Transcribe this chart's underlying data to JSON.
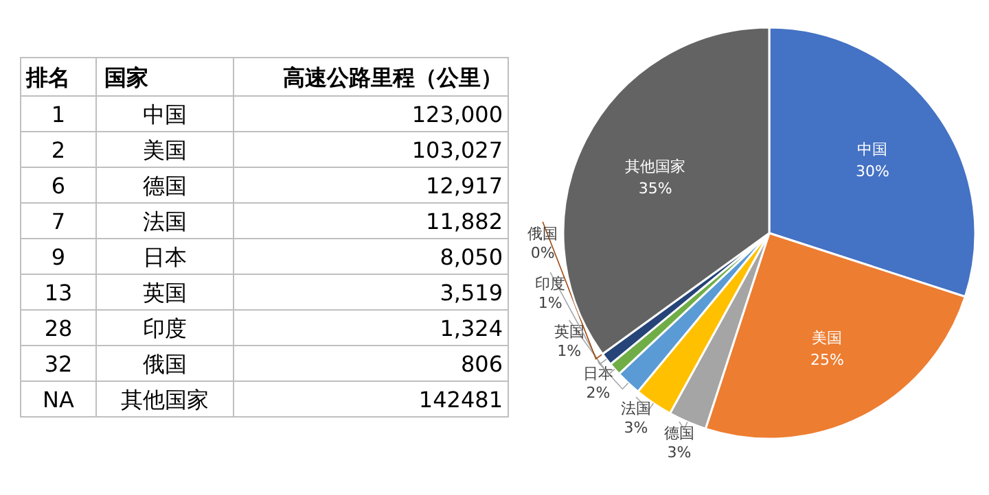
{
  "chart_data": [
    {
      "type": "other",
      "annotations": [
        "排名",
        "国家",
        "高速公路里程（公里）",
        "1",
        "2",
        "6",
        "7",
        "9",
        "13",
        "28",
        "32",
        "NA"
      ],
      "categories": [
        "中国",
        "美国",
        "德国",
        "法国",
        "日本",
        "英国",
        "印度",
        "俄国",
        "其他国家"
      ],
      "value_labels": [
        "123,000",
        "103,027",
        "12,917",
        "11,882",
        "8,050",
        "3,519",
        "1,324",
        "806",
        "142481"
      ]
    },
    {
      "type": "pie",
      "categories": [
        "中国",
        "美国",
        "德国",
        "法国",
        "日本",
        "英国",
        "印度",
        "俄国",
        "其他国家"
      ],
      "values": [
        30,
        25,
        3,
        3,
        2,
        1,
        1,
        0,
        35
      ],
      "value_labels": [
        "30%",
        "25%",
        "3%",
        "3%",
        "2%",
        "1%",
        "1%",
        "0%",
        "35%"
      ],
      "colors": [
        "#4472c4",
        "#ed7d31",
        "#a5a5a5",
        "#ffc000",
        "#5b9bd5",
        "#70ad47",
        "#264478",
        "#9e480e",
        "#636363"
      ]
    }
  ]
}
